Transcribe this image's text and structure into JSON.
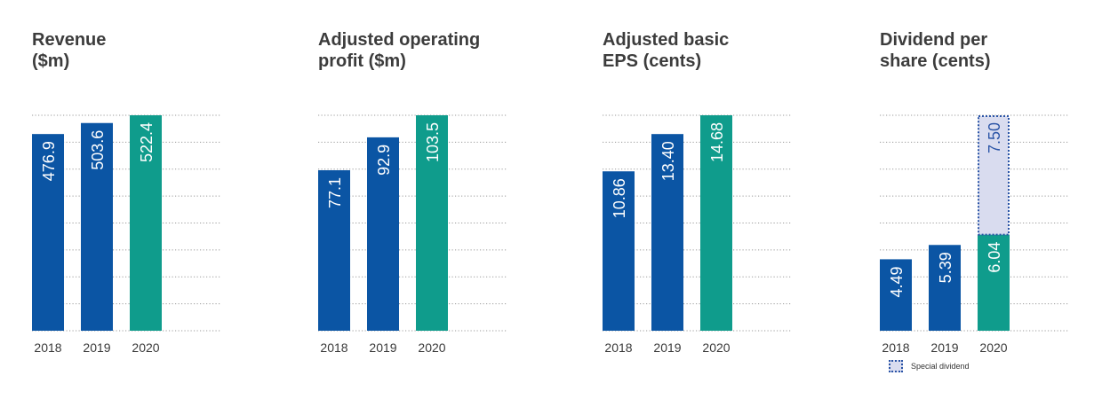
{
  "colors": {
    "blue": "#0b55a4",
    "teal": "#0f9c8c",
    "special_fill": "#d9dcef",
    "special_border": "#2a54a6",
    "gridline": "#9a9a9a",
    "label": "#3a3a3a"
  },
  "chart_data": [
    {
      "type": "bar",
      "title_lines": [
        "Revenue",
        "($m)"
      ],
      "categories": [
        "2018",
        "2019",
        "2020"
      ],
      "values": [
        476.9,
        503.6,
        522.4
      ],
      "labels": [
        "476.9",
        "503.6",
        "522.4"
      ],
      "ylim": [
        0,
        522.4
      ],
      "grid": true
    },
    {
      "type": "bar",
      "title_lines": [
        "Adjusted operating",
        "profit ($m)"
      ],
      "categories": [
        "2018",
        "2019",
        "2020"
      ],
      "values": [
        77.1,
        92.9,
        103.5
      ],
      "labels": [
        "77.1",
        "92.9",
        "103.5"
      ],
      "ylim": [
        0,
        103.5
      ],
      "grid": true
    },
    {
      "type": "bar",
      "title_lines": [
        "Adjusted basic",
        "EPS (cents)"
      ],
      "categories": [
        "2018",
        "2019",
        "2020"
      ],
      "values": [
        10.86,
        13.4,
        14.68
      ],
      "labels": [
        "10.86",
        "13.40",
        "14.68"
      ],
      "ylim": [
        0,
        14.68
      ],
      "grid": true
    },
    {
      "type": "bar",
      "stacked": true,
      "title_lines": [
        "Dividend per",
        "share (cents)"
      ],
      "categories": [
        "2018",
        "2019",
        "2020"
      ],
      "values": [
        4.49,
        5.39,
        6.04
      ],
      "labels": [
        "4.49",
        "5.39",
        "6.04"
      ],
      "special": [
        null,
        null,
        7.5
      ],
      "special_labels": [
        "",
        "",
        "7.50"
      ],
      "ylim": [
        0,
        13.54
      ],
      "grid": true,
      "legend": {
        "label": "Special dividend",
        "placement": "bottom-left"
      }
    }
  ]
}
